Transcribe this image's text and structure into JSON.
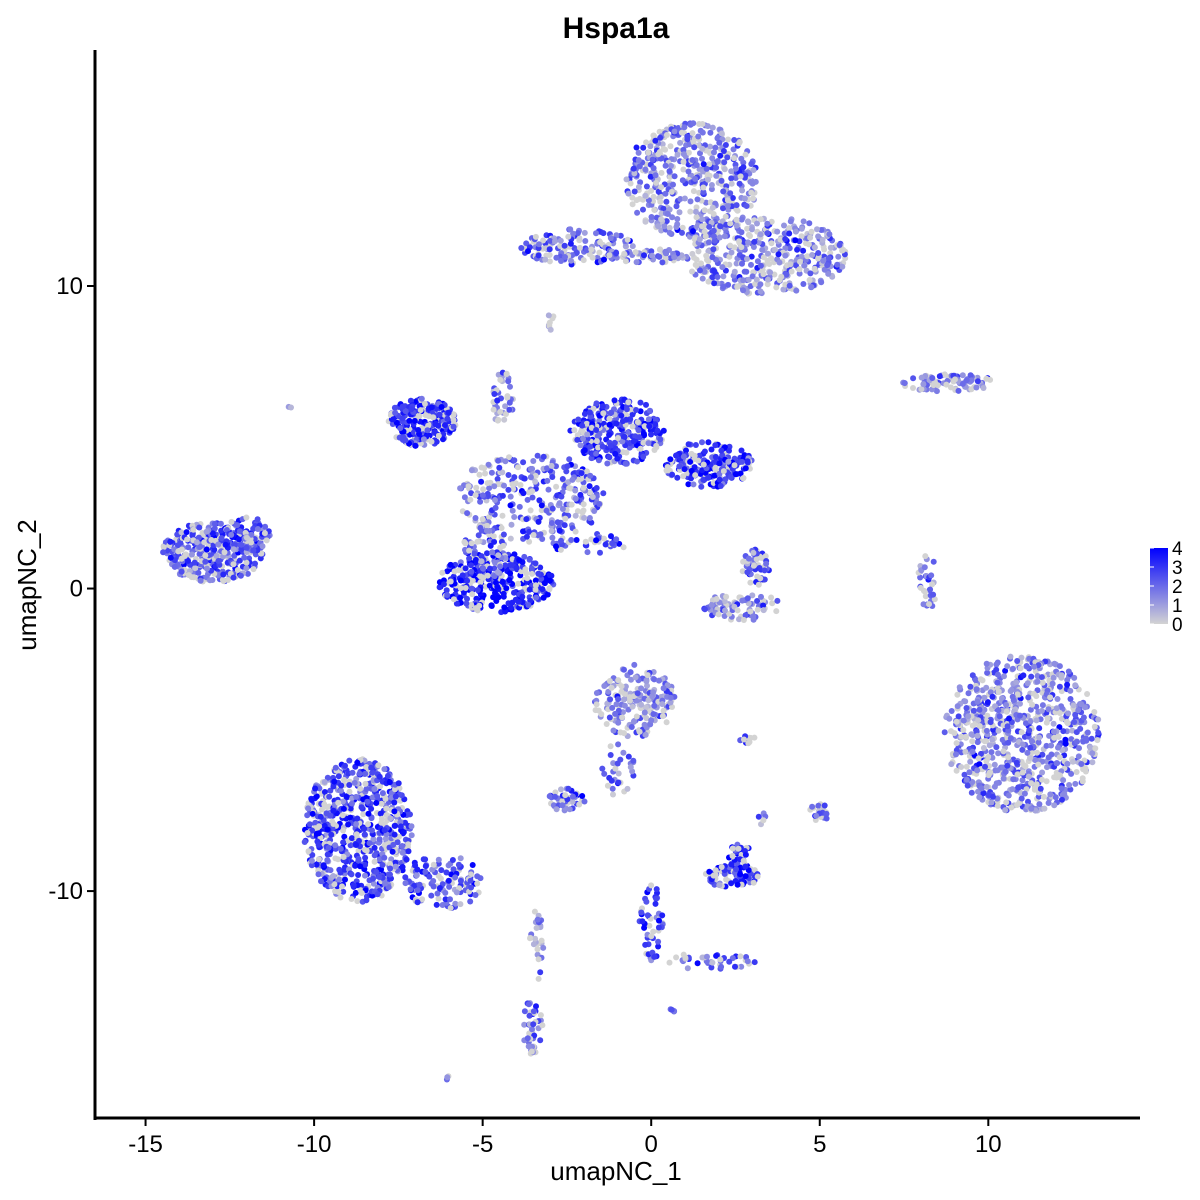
{
  "chart_data": {
    "type": "scatter",
    "title": "Hspa1a",
    "xlabel": "umapNC_1",
    "ylabel": "umapNC_2",
    "xlim": [
      -16.5,
      14.5
    ],
    "ylim": [
      -17.5,
      17.8
    ],
    "x_ticks": [
      -15,
      -10,
      -5,
      0,
      5,
      10
    ],
    "y_ticks": [
      -10,
      0,
      10
    ],
    "x_tick_labels": [
      "-15",
      "-10",
      "-5",
      "0",
      "5",
      "10"
    ],
    "y_tick_labels": [
      "-10",
      "0",
      "10"
    ],
    "grid": false,
    "legend_placement": "right",
    "colorbar": {
      "min": 0,
      "max": 4,
      "ticks": [
        0,
        1,
        2,
        3,
        4
      ],
      "tick_labels": [
        "0",
        "1",
        "2",
        "3",
        "4"
      ],
      "low_color": "#d3d3d3",
      "high_color": "#0000ff"
    },
    "clusters": [
      {
        "x": 1.2,
        "y": 13.5,
        "rx": 2.0,
        "ry": 1.9,
        "mean_expr": 1.6,
        "n": 500
      },
      {
        "x": 3.4,
        "y": 11.0,
        "rx": 2.4,
        "ry": 1.3,
        "mean_expr": 1.6,
        "n": 400
      },
      {
        "x": -2.2,
        "y": 11.3,
        "rx": 1.7,
        "ry": 0.6,
        "mean_expr": 2.1,
        "n": 140
      },
      {
        "x": -0.2,
        "y": 11.0,
        "rx": 1.2,
        "ry": 0.25,
        "mean_expr": 1.8,
        "n": 50
      },
      {
        "x": 8.8,
        "y": 6.8,
        "rx": 1.4,
        "ry": 0.3,
        "mean_expr": 1.4,
        "n": 80
      },
      {
        "x": -3.0,
        "y": 8.8,
        "rx": 0.2,
        "ry": 0.25,
        "mean_expr": 0.8,
        "n": 8
      },
      {
        "x": -6.8,
        "y": 5.5,
        "rx": 1.0,
        "ry": 0.8,
        "mean_expr": 3.0,
        "n": 250
      },
      {
        "x": -1.0,
        "y": 5.2,
        "rx": 1.4,
        "ry": 1.1,
        "mean_expr": 2.9,
        "n": 300
      },
      {
        "x": 1.7,
        "y": 4.1,
        "rx": 1.3,
        "ry": 0.75,
        "mean_expr": 3.2,
        "n": 200
      },
      {
        "x": -3.6,
        "y": 3.0,
        "rx": 2.2,
        "ry": 1.5,
        "mean_expr": 2.0,
        "n": 300
      },
      {
        "x": -4.6,
        "y": 0.2,
        "rx": 1.7,
        "ry": 1.0,
        "mean_expr": 3.5,
        "n": 350
      },
      {
        "x": -4.9,
        "y": 1.2,
        "rx": 0.7,
        "ry": 0.9,
        "mean_expr": 2.0,
        "n": 60
      },
      {
        "x": -4.4,
        "y": 6.2,
        "rx": 0.3,
        "ry": 1.0,
        "mean_expr": 1.5,
        "n": 40
      },
      {
        "x": -1.9,
        "y": 1.5,
        "rx": 1.2,
        "ry": 0.35,
        "mean_expr": 2.5,
        "n": 40
      },
      {
        "x": -13.0,
        "y": 1.2,
        "rx": 1.5,
        "ry": 1.0,
        "mean_expr": 2.3,
        "n": 350
      },
      {
        "x": -12.0,
        "y": 1.8,
        "rx": 0.7,
        "ry": 0.6,
        "mean_expr": 2.0,
        "n": 60
      },
      {
        "x": 3.1,
        "y": 0.7,
        "rx": 0.4,
        "ry": 0.6,
        "mean_expr": 2.6,
        "n": 60
      },
      {
        "x": 2.7,
        "y": -0.6,
        "rx": 1.2,
        "ry": 0.45,
        "mean_expr": 1.3,
        "n": 80
      },
      {
        "x": 8.2,
        "y": 0.2,
        "rx": 0.3,
        "ry": 0.9,
        "mean_expr": 1.8,
        "n": 35
      },
      {
        "x": 11.0,
        "y": -4.8,
        "rx": 2.3,
        "ry": 2.6,
        "mean_expr": 1.7,
        "n": 800
      },
      {
        "x": -0.5,
        "y": -3.7,
        "rx": 1.2,
        "ry": 1.2,
        "mean_expr": 1.4,
        "n": 200
      },
      {
        "x": -8.7,
        "y": -8.0,
        "rx": 1.6,
        "ry": 2.4,
        "mean_expr": 2.7,
        "n": 700
      },
      {
        "x": -6.2,
        "y": -9.7,
        "rx": 1.2,
        "ry": 0.9,
        "mean_expr": 2.4,
        "n": 120
      },
      {
        "x": -3.5,
        "y": -14.5,
        "rx": 0.35,
        "ry": 0.9,
        "mean_expr": 2.0,
        "n": 40
      },
      {
        "x": -3.4,
        "y": -11.8,
        "rx": 0.2,
        "ry": 1.2,
        "mean_expr": 1.0,
        "n": 25
      },
      {
        "x": -2.5,
        "y": -7.0,
        "rx": 0.55,
        "ry": 0.4,
        "mean_expr": 2.0,
        "n": 45
      },
      {
        "x": -1.0,
        "y": -6.0,
        "rx": 0.5,
        "ry": 0.9,
        "mean_expr": 2.0,
        "n": 30
      },
      {
        "x": 2.4,
        "y": -9.5,
        "rx": 0.8,
        "ry": 0.4,
        "mean_expr": 3.0,
        "n": 80
      },
      {
        "x": 2.6,
        "y": -8.8,
        "rx": 0.35,
        "ry": 0.5,
        "mean_expr": 3.2,
        "n": 30
      },
      {
        "x": 0.0,
        "y": -11.0,
        "rx": 0.35,
        "ry": 1.3,
        "mean_expr": 2.4,
        "n": 50
      },
      {
        "x": 1.8,
        "y": -12.3,
        "rx": 1.3,
        "ry": 0.3,
        "mean_expr": 2.2,
        "n": 40
      },
      {
        "x": 5.0,
        "y": -7.4,
        "rx": 0.3,
        "ry": 0.3,
        "mean_expr": 2.2,
        "n": 20
      },
      {
        "x": 2.8,
        "y": -5.0,
        "rx": 0.35,
        "ry": 0.12,
        "mean_expr": 2.6,
        "n": 10
      },
      {
        "x": 0.6,
        "y": -14.0,
        "rx": 0.1,
        "ry": 0.1,
        "mean_expr": 2.5,
        "n": 4
      },
      {
        "x": -6.0,
        "y": -16.2,
        "rx": 0.1,
        "ry": 0.1,
        "mean_expr": 2.0,
        "n": 3
      },
      {
        "x": 3.3,
        "y": -7.6,
        "rx": 0.15,
        "ry": 0.2,
        "mean_expr": 2.0,
        "n": 5
      },
      {
        "x": -10.7,
        "y": 6.0,
        "rx": 0.08,
        "ry": 0.08,
        "mean_expr": 0.8,
        "n": 2
      }
    ]
  }
}
